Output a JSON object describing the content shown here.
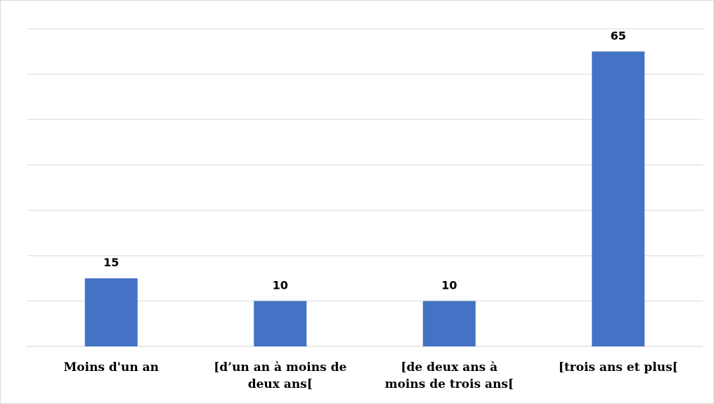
{
  "chart_data": {
    "type": "bar",
    "categories": [
      [
        "Moins d'un an"
      ],
      [
        "[d’un an à moins de",
        "deux ans["
      ],
      [
        "[de deux ans à",
        "moins de trois ans["
      ],
      [
        "[trois ans et plus["
      ]
    ],
    "values": [
      15,
      10,
      10,
      65
    ],
    "data_labels": [
      "15",
      "10",
      "10",
      "65"
    ],
    "title": "",
    "xlabel": "",
    "ylabel": "",
    "ylim": [
      0,
      70
    ],
    "grid": true,
    "legend": "none",
    "bar_color": "#4472c4"
  }
}
